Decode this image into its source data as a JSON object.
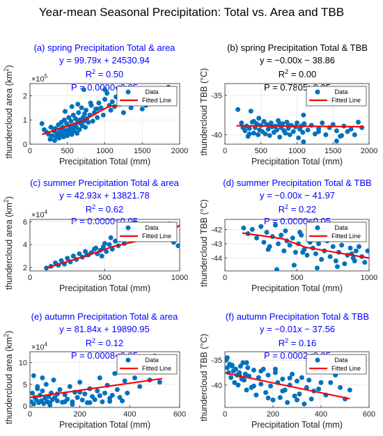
{
  "figure_title": "Year-mean Seasonal Precipitation: Total vs. Area and TBB",
  "colors": {
    "blue_text": "#0000ff",
    "black_text": "#000000",
    "points": "#0072bd",
    "fit": "#ff0000"
  },
  "legend": {
    "data": "Data",
    "fit": "Fitted Line"
  },
  "chart_data": [
    {
      "id": "a",
      "type": "scatter",
      "title": "(a) spring Precipitation Total & area",
      "equation": "y = 99.79x + 24530.94",
      "r2_base": "R",
      "r2_sup": "2",
      "r2_val": " = 0.50",
      "p_text": "P = 0.0000<0.05",
      "header_color": "blue",
      "xlabel": "Precipitation Total (mm)",
      "ylabel_pre": "thundercloud area (km",
      "ylabel_sup": "2",
      "ylabel_post": ")",
      "exp_base": "×10",
      "exp_sup": "5",
      "xlim": [
        0,
        2000
      ],
      "ylim": [
        0,
        2.5
      ],
      "xticks": [
        0,
        500,
        1000,
        1500,
        2000
      ],
      "xtick_labels": [
        "0",
        "500",
        "1000",
        "1500",
        "2000"
      ],
      "yticks": [
        0,
        1,
        2
      ],
      "ytick_labels": [
        "0",
        "1",
        "2"
      ],
      "fit_line": [
        [
          160,
          0.4
        ],
        [
          700,
          0.95
        ],
        [
          1060,
          1.57
        ],
        [
          1520,
          1.65
        ],
        [
          1930,
          2.2
        ]
      ],
      "x": [
        160,
        190,
        220,
        250,
        280,
        300,
        320,
        340,
        350,
        360,
        380,
        390,
        400,
        410,
        420,
        430,
        440,
        450,
        460,
        470,
        480,
        490,
        500,
        510,
        520,
        530,
        540,
        550,
        560,
        570,
        580,
        590,
        600,
        610,
        620,
        630,
        640,
        650,
        660,
        670,
        680,
        690,
        700,
        710,
        720,
        730,
        740,
        750,
        760,
        780,
        800,
        820,
        840,
        860,
        880,
        900,
        920,
        950,
        980,
        1000,
        1030,
        1060,
        1080,
        1100,
        1130,
        1150,
        1180,
        1200,
        1250,
        1300,
        1350,
        1400,
        1450,
        1500,
        1550,
        1600,
        1650,
        1700,
        1750,
        1800,
        1850,
        1900,
        1930,
        270,
        330,
        370,
        470,
        560,
        640,
        720,
        810,
        900,
        1000,
        1500
      ],
      "y": [
        0.85,
        0.6,
        0.5,
        0.4,
        0.7,
        0.35,
        0.55,
        0.65,
        0.3,
        0.45,
        0.8,
        0.25,
        0.6,
        0.4,
        0.9,
        0.5,
        0.7,
        0.3,
        1.0,
        0.55,
        0.45,
        0.85,
        0.35,
        0.6,
        1.1,
        0.5,
        0.75,
        0.95,
        0.4,
        0.65,
        1.2,
        0.55,
        0.8,
        1.05,
        0.7,
        0.45,
        0.9,
        1.3,
        0.6,
        1.0,
        0.85,
        1.5,
        0.75,
        1.1,
        0.95,
        1.25,
        0.7,
        1.4,
        1.05,
        0.9,
        1.2,
        1.6,
        0.95,
        1.3,
        1.45,
        1.1,
        1.7,
        1.5,
        1.2,
        1.85,
        2.1,
        1.6,
        1.4,
        1.75,
        1.55,
        1.95,
        2.3,
        1.65,
        1.3,
        1.8,
        1.5,
        2.0,
        1.7,
        2.2,
        1.6,
        1.9,
        1.75,
        2.1,
        1.85,
        2.0,
        2.35,
        1.95,
        2.3,
        0.2,
        0.15,
        0.35,
        1.35,
        1.55,
        1.65,
        2.25,
        1.7,
        1.45,
        2.25,
        1.45
      ]
    },
    {
      "id": "b",
      "type": "scatter",
      "title": "(b) spring Precipitation Total & TBB",
      "equation": "y = −0.00x − 38.86",
      "r2_base": "R",
      "r2_sup": "2",
      "r2_val": " = 0.00",
      "p_text": "P = 0.7805>0.05",
      "header_color": "black",
      "xlabel": "Precipitation Total (mm)",
      "ylabel_pre": "thundercloud TBB (°C)",
      "ylabel_sup": "",
      "ylabel_post": "",
      "exp_base": "",
      "exp_sup": "",
      "xlim": [
        0,
        2000
      ],
      "ylim": [
        -41.2,
        -33.5
      ],
      "xticks": [
        0,
        500,
        1000,
        1500,
        2000
      ],
      "xtick_labels": [
        "0",
        "500",
        "1000",
        "1500",
        "2000"
      ],
      "yticks": [
        -40,
        -35
      ],
      "ytick_labels": [
        "-40",
        "-35"
      ],
      "fit_line": [
        [
          160,
          -38.86
        ],
        [
          1920,
          -38.98
        ]
      ],
      "x": [
        180,
        230,
        280,
        300,
        320,
        340,
        360,
        380,
        400,
        420,
        440,
        460,
        480,
        500,
        520,
        540,
        560,
        580,
        600,
        620,
        640,
        660,
        680,
        700,
        720,
        740,
        760,
        780,
        800,
        820,
        840,
        860,
        880,
        900,
        920,
        950,
        980,
        1000,
        1020,
        1040,
        1060,
        1080,
        1100,
        1150,
        1200,
        1250,
        1300,
        1350,
        1400,
        1450,
        1500,
        1550,
        1600,
        1650,
        1700,
        1750,
        1800,
        1850,
        1900,
        400,
        620,
        880,
        1090,
        1300,
        1550,
        1620,
        340,
        470,
        760,
        1090,
        250
      ],
      "y": [
        -36.8,
        -38.5,
        -39.5,
        -38.9,
        -40.2,
        -39.2,
        -37.0,
        -38.4,
        -39.8,
        -39.1,
        -38.6,
        -40.0,
        -39.4,
        -38.8,
        -39.6,
        -38.3,
        -39.9,
        -38.7,
        -39.3,
        -40.1,
        -38.5,
        -39.0,
        -39.7,
        -38.9,
        -39.4,
        -38.2,
        -40.3,
        -39.1,
        -38.6,
        -39.5,
        -39.8,
        -38.4,
        -39.2,
        -40.0,
        -38.8,
        -39.6,
        -39.0,
        -38.5,
        -40.4,
        -39.3,
        -38.9,
        -39.7,
        -38.6,
        -39.4,
        -38.8,
        -39.9,
        -39.2,
        -38.5,
        -40.0,
        -39.1,
        -38.7,
        -39.5,
        -40.2,
        -38.9,
        -39.6,
        -39.3,
        -40.0,
        -38.4,
        -39.1,
        -38.3,
        -39.0,
        -38.8,
        -40.9,
        -39.6,
        -40.8,
        -40.1,
        -39.9,
        -37.9,
        -38.6,
        -37.5,
        -39.1
      ]
    },
    {
      "id": "c",
      "type": "scatter",
      "title": "(c) summer Precipitation Total & area",
      "equation": "y = 42.93x + 13821.78",
      "r2_base": "R",
      "r2_sup": "2",
      "r2_val": " = 0.62",
      "p_text": "P = 0.0000<0.05",
      "header_color": "blue",
      "xlabel": "Precipitation Total (mm)",
      "ylabel_pre": "thundercloud area (km",
      "ylabel_sup": "2",
      "ylabel_post": ")",
      "exp_base": "×10",
      "exp_sup": "4",
      "xlim": [
        0,
        1000
      ],
      "ylim": [
        1.7,
        6.2
      ],
      "xticks": [
        0,
        500,
        1000
      ],
      "xtick_labels": [
        "0",
        "500",
        "1000"
      ],
      "yticks": [
        2,
        4,
        6
      ],
      "ytick_labels": [
        "2",
        "4",
        "6"
      ],
      "fit_line": [
        [
          110,
          1.95
        ],
        [
          360,
          2.95
        ],
        [
          560,
          3.85
        ],
        [
          920,
          4.9
        ],
        [
          1000,
          5.7
        ]
      ],
      "x": [
        110,
        140,
        170,
        190,
        210,
        230,
        250,
        270,
        290,
        310,
        330,
        350,
        370,
        390,
        410,
        430,
        450,
        470,
        490,
        510,
        530,
        550,
        570,
        590,
        610,
        630,
        650,
        670,
        690,
        710,
        730,
        750,
        770,
        790,
        810,
        830,
        850,
        870,
        900,
        930,
        960,
        990,
        480,
        540,
        600,
        680,
        720,
        760,
        820,
        500,
        620,
        700,
        380,
        440
      ],
      "y": [
        1.95,
        2.1,
        2.4,
        2.2,
        2.6,
        2.3,
        2.8,
        2.5,
        3.0,
        2.7,
        3.2,
        2.9,
        3.4,
        3.1,
        3.3,
        3.6,
        3.2,
        3.5,
        3.8,
        3.4,
        4.0,
        3.6,
        4.3,
        3.9,
        4.6,
        4.1,
        4.8,
        4.4,
        5.2,
        4.6,
        4.9,
        5.4,
        4.7,
        5.0,
        5.6,
        4.8,
        5.1,
        5.5,
        5.3,
        5.8,
        4.2,
        3.9,
        3.0,
        4.6,
        4.4,
        5.8,
        5.6,
        5.2,
        5.1,
        4.1,
        5.0,
        5.9,
        3.1,
        3.7
      ]
    },
    {
      "id": "d",
      "type": "scatter",
      "title": "(d) summer Precipitation Total & TBB",
      "equation": "y = −0.00x − 41.97",
      "r2_base": "R",
      "r2_sup": "2",
      "r2_val": " = 0.22",
      "p_text": "P = 0.0000<0.05",
      "header_color": "blue",
      "xlabel": "Precipitation Total (mm)",
      "ylabel_pre": "thundercloud TBB (°C)",
      "ylabel_sup": "",
      "ylabel_post": "",
      "exp_base": "",
      "exp_sup": "",
      "xlim": [
        0,
        1000
      ],
      "ylim": [
        -44.9,
        -41.3
      ],
      "xticks": [
        0,
        500,
        1000
      ],
      "xtick_labels": [
        "0",
        "500",
        "1000"
      ],
      "yticks": [
        -44,
        -43,
        -42
      ],
      "ytick_labels": [
        "-44",
        "-43",
        "-42"
      ],
      "fit_line": [
        [
          120,
          -42.25
        ],
        [
          400,
          -42.65
        ],
        [
          560,
          -43.25
        ],
        [
          1000,
          -44.0
        ]
      ],
      "x": [
        130,
        160,
        190,
        220,
        250,
        270,
        290,
        310,
        330,
        350,
        370,
        390,
        410,
        430,
        450,
        470,
        490,
        510,
        530,
        550,
        570,
        590,
        610,
        630,
        650,
        670,
        690,
        710,
        730,
        750,
        770,
        790,
        810,
        830,
        850,
        870,
        890,
        910,
        930,
        950,
        970,
        990,
        360,
        420,
        480,
        540,
        600,
        660,
        720,
        780,
        840,
        900,
        300,
        520,
        640,
        760,
        880
      ],
      "y": [
        -41.9,
        -42.3,
        -42.0,
        -42.6,
        -41.8,
        -42.9,
        -42.2,
        -43.2,
        -42.5,
        -41.7,
        -43.0,
        -42.4,
        -43.5,
        -42.8,
        -43.1,
        -42.6,
        -43.6,
        -43.0,
        -42.4,
        -43.4,
        -43.8,
        -42.9,
        -43.3,
        -43.7,
        -43.0,
        -44.1,
        -43.5,
        -42.8,
        -43.9,
        -43.2,
        -44.2,
        -43.6,
        -43.1,
        -44.4,
        -43.8,
        -43.3,
        -44.0,
        -43.5,
        -43.2,
        -43.9,
        -44.3,
        -43.5,
        -44.8,
        -42.1,
        -44.5,
        -43.6,
        -41.6,
        -42.5,
        -42.0,
        -44.6,
        -42.7,
        -44.2,
        -43.4,
        -42.2,
        -44.7,
        -42.3,
        -43.7
      ]
    },
    {
      "id": "e",
      "type": "scatter",
      "title": "(e) autumn Precipitation Total & area",
      "equation": "y = 81.84x + 19890.95",
      "r2_base": "R",
      "r2_sup": "2",
      "r2_val": " = 0.12",
      "p_text": "P = 0.0008<0.05",
      "header_color": "blue",
      "xlabel": "Precipitation Total (mm)",
      "ylabel_pre": "thundercloud area (km",
      "ylabel_sup": "2",
      "ylabel_post": ")",
      "exp_base": "×10",
      "exp_sup": "4",
      "xlim": [
        0,
        600
      ],
      "ylim": [
        -0.3,
        12.5
      ],
      "xticks": [
        0,
        200,
        400,
        600
      ],
      "xtick_labels": [
        "0",
        "200",
        "400",
        "600"
      ],
      "yticks": [
        0,
        5,
        10
      ],
      "ytick_labels": [
        "0",
        "5",
        "10"
      ],
      "fit_line": [
        [
          0,
          1.99
        ],
        [
          530,
          6.33
        ]
      ],
      "x": [
        5,
        10,
        15,
        20,
        25,
        30,
        35,
        40,
        45,
        50,
        55,
        60,
        65,
        70,
        75,
        80,
        85,
        90,
        95,
        100,
        110,
        120,
        130,
        140,
        150,
        160,
        170,
        180,
        190,
        200,
        210,
        220,
        230,
        240,
        250,
        260,
        270,
        280,
        290,
        300,
        310,
        320,
        330,
        340,
        350,
        360,
        370,
        380,
        390,
        400,
        420,
        440,
        460,
        480,
        500,
        520,
        540,
        15,
        30,
        50,
        80,
        110,
        140,
        170,
        200,
        240,
        280,
        320
      ],
      "y": [
        1.0,
        3.0,
        0.5,
        2.0,
        1.5,
        4.0,
        0.8,
        2.5,
        1.2,
        3.5,
        0.6,
        1.8,
        5.0,
        1.0,
        2.2,
        0.7,
        3.0,
        1.5,
        6.0,
        2.0,
        1.2,
        3.8,
        0.9,
        2.6,
        1.6,
        4.5,
        1.0,
        3.2,
        2.0,
        5.5,
        1.4,
        2.8,
        0.8,
        4.0,
        2.2,
        1.5,
        3.5,
        6.5,
        1.0,
        3.0,
        4.8,
        1.8,
        2.5,
        7.5,
        3.8,
        2.0,
        1.2,
        5.8,
        3.0,
        8.0,
        6.5,
        4.5,
        9.0,
        6.0,
        11.5,
        5.5,
        10.5,
        7.0,
        4.5,
        6.5,
        0.3,
        2.8,
        1.0,
        0.4,
        3.2,
        0.8,
        2.4,
        1.1
      ]
    },
    {
      "id": "f",
      "type": "scatter",
      "title": "(f) autumn Precipitation Total & TBB",
      "equation": "y = −0.01x − 37.56",
      "r2_base": "R",
      "r2_sup": "2",
      "r2_val": " = 0.16",
      "p_text": "P = 0.0002<0.05",
      "header_color": "blue",
      "xlabel": "Precipitation Total (mm)",
      "ylabel_pre": "thundercloud TBB (°C)",
      "ylabel_sup": "",
      "ylabel_post": "",
      "exp_base": "",
      "exp_sup": "",
      "xlim": [
        0,
        600
      ],
      "ylim": [
        -44.5,
        -33.3
      ],
      "xticks": [
        0,
        200,
        400,
        600
      ],
      "xtick_labels": [
        "0",
        "200",
        "400",
        "600"
      ],
      "yticks": [
        -40,
        -35
      ],
      "ytick_labels": [
        "-40",
        "-35"
      ],
      "fit_line": [
        [
          0,
          -37.56
        ],
        [
          520,
          -42.76
        ]
      ],
      "x": [
        5,
        10,
        15,
        20,
        25,
        30,
        35,
        40,
        45,
        50,
        55,
        60,
        65,
        70,
        75,
        80,
        85,
        90,
        95,
        100,
        110,
        120,
        130,
        140,
        150,
        160,
        170,
        180,
        190,
        200,
        210,
        220,
        230,
        240,
        250,
        260,
        270,
        280,
        290,
        300,
        310,
        320,
        330,
        340,
        350,
        360,
        370,
        380,
        390,
        400,
        420,
        440,
        460,
        480,
        500,
        520,
        10,
        30,
        60,
        90,
        120,
        150,
        180,
        210,
        240,
        270,
        300
      ],
      "y": [
        -35.0,
        -36.5,
        -37.5,
        -35.8,
        -38.5,
        -36.0,
        -37.2,
        -39.5,
        -36.8,
        -38.0,
        -40.0,
        -37.5,
        -36.2,
        -38.8,
        -35.5,
        -39.0,
        -37.8,
        -41.0,
        -36.5,
        -38.2,
        -40.5,
        -37.0,
        -42.0,
        -38.5,
        -39.8,
        -36.8,
        -41.5,
        -38.0,
        -40.2,
        -43.0,
        -37.5,
        -39.5,
        -42.5,
        -38.8,
        -41.0,
        -43.5,
        -40.0,
        -37.8,
        -42.2,
        -39.2,
        -41.8,
        -38.5,
        -43.8,
        -40.5,
        -39.0,
        -42.8,
        -41.2,
        -36.5,
        -40.8,
        -39.5,
        -42.0,
        -39.5,
        -38.0,
        -40.5,
        -42.8,
        -41.0,
        -34.5,
        -36.2,
        -38.0,
        -35.5,
        -40.2,
        -37.2,
        -42.6,
        -36.8,
        -41.2,
        -38.6,
        -43.0
      ]
    }
  ]
}
